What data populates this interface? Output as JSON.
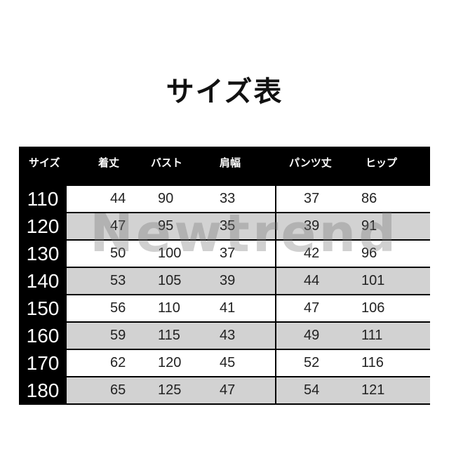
{
  "title": "サイズ表",
  "watermark": "Newtrend",
  "colors": {
    "frame": "#000000",
    "row_gray": "#d2d2d2",
    "row_white": "#ffffff"
  },
  "table": {
    "headers": [
      "サイズ",
      "着丈",
      "バスト",
      "肩幅",
      "パンツ丈",
      "ヒップ"
    ],
    "rows": [
      [
        "110",
        "44",
        "90",
        "33",
        "37",
        "86"
      ],
      [
        "120",
        "47",
        "95",
        "35",
        "39",
        "91"
      ],
      [
        "130",
        "50",
        "100",
        "37",
        "42",
        "96"
      ],
      [
        "140",
        "53",
        "105",
        "39",
        "44",
        "101"
      ],
      [
        "150",
        "56",
        "110",
        "41",
        "47",
        "106"
      ],
      [
        "160",
        "59",
        "115",
        "43",
        "49",
        "111"
      ],
      [
        "170",
        "62",
        "120",
        "45",
        "52",
        "116"
      ],
      [
        "180",
        "65",
        "125",
        "47",
        "54",
        "121"
      ]
    ]
  }
}
